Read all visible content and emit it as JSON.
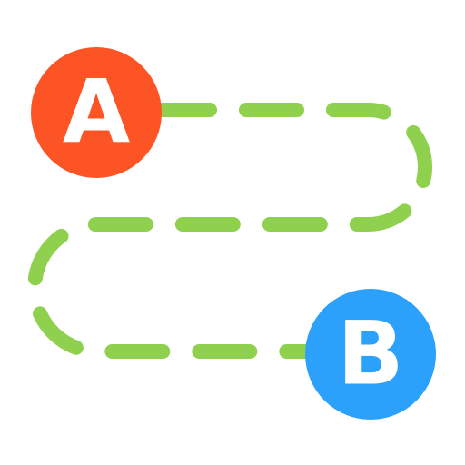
{
  "route": {
    "colors": {
      "path": "#8fd14f",
      "start": "#fd5426",
      "end": "#2ba1fb",
      "letter": "#ffffff"
    },
    "start": {
      "label": "A",
      "icon": "start-point-marker"
    },
    "end": {
      "label": "B",
      "icon": "end-point-marker"
    },
    "path_icon": "dashed-route-path"
  }
}
